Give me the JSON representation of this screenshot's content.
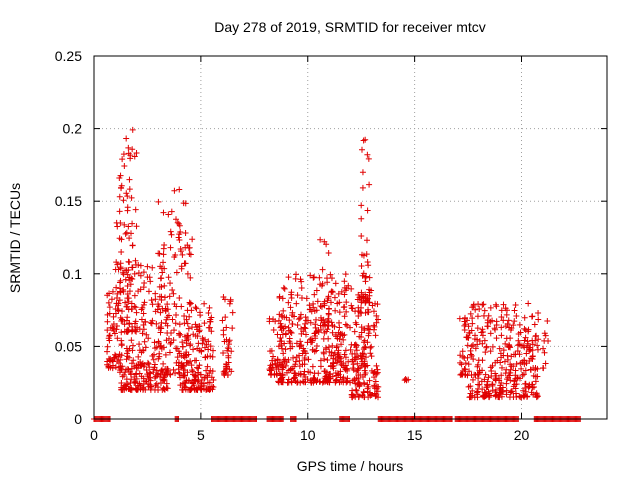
{
  "chart_data": {
    "type": "scatter",
    "title": "Day 278 of 2019, SRMTID for receiver mtcv",
    "xlabel": "GPS time / hours",
    "ylabel": "SRMTID / TECUs",
    "xlim": [
      0,
      24
    ],
    "ylim": [
      0,
      0.25
    ],
    "xticks": [
      "0",
      "5",
      "10",
      "15",
      "20"
    ],
    "yticks": [
      "0",
      "0.05",
      "0.1",
      "0.15",
      "0.2",
      "0.25"
    ],
    "grid": true,
    "marker": "+",
    "color": "#e00000",
    "series": [
      {
        "name": "SRMTID",
        "clusters": [
          {
            "x_range": [
              0.6,
              1.3
            ],
            "y_min": 0.035,
            "y_max": 0.09,
            "count": 60
          },
          {
            "x_range": [
              1.0,
              2.0
            ],
            "y_min": 0.06,
            "y_max": 0.2,
            "count": 90
          },
          {
            "x_range": [
              1.2,
              3.5
            ],
            "y_min": 0.02,
            "y_max": 0.11,
            "count": 260
          },
          {
            "x_range": [
              3.0,
              4.6
            ],
            "y_min": 0.03,
            "y_max": 0.16,
            "count": 130
          },
          {
            "x_range": [
              4.0,
              5.6
            ],
            "y_min": 0.02,
            "y_max": 0.08,
            "count": 170
          },
          {
            "x_range": [
              6.0,
              6.5
            ],
            "y_min": 0.03,
            "y_max": 0.085,
            "count": 40
          },
          {
            "x_range": [
              8.2,
              8.6
            ],
            "y_min": 0.03,
            "y_max": 0.07,
            "count": 30
          },
          {
            "x_range": [
              8.6,
              12.0
            ],
            "y_min": 0.025,
            "y_max": 0.1,
            "count": 380
          },
          {
            "x_range": [
              10.5,
              11.0
            ],
            "y_min": 0.06,
            "y_max": 0.125,
            "count": 25
          },
          {
            "x_range": [
              12.0,
              13.3
            ],
            "y_min": 0.015,
            "y_max": 0.09,
            "count": 170
          },
          {
            "x_range": [
              12.5,
              12.9
            ],
            "y_min": 0.08,
            "y_max": 0.195,
            "count": 40
          },
          {
            "x_range": [
              14.5,
              14.7
            ],
            "y_min": 0.025,
            "y_max": 0.035,
            "count": 4
          },
          {
            "x_range": [
              17.1,
              17.5
            ],
            "y_min": 0.03,
            "y_max": 0.07,
            "count": 30
          },
          {
            "x_range": [
              17.5,
              20.8
            ],
            "y_min": 0.015,
            "y_max": 0.08,
            "count": 330
          },
          {
            "x_range": [
              21.0,
              21.3
            ],
            "y_min": 0.035,
            "y_max": 0.068,
            "count": 10
          }
        ],
        "baseline_segments": [
          [
            0.0,
            0.8
          ],
          [
            3.8,
            3.95
          ],
          [
            5.5,
            7.6
          ],
          [
            8.1,
            8.9
          ],
          [
            9.2,
            9.5
          ],
          [
            11.5,
            12.0
          ],
          [
            13.3,
            16.8
          ],
          [
            16.9,
            19.9
          ],
          [
            20.6,
            22.8
          ]
        ],
        "baseline_value": 0
      }
    ]
  }
}
